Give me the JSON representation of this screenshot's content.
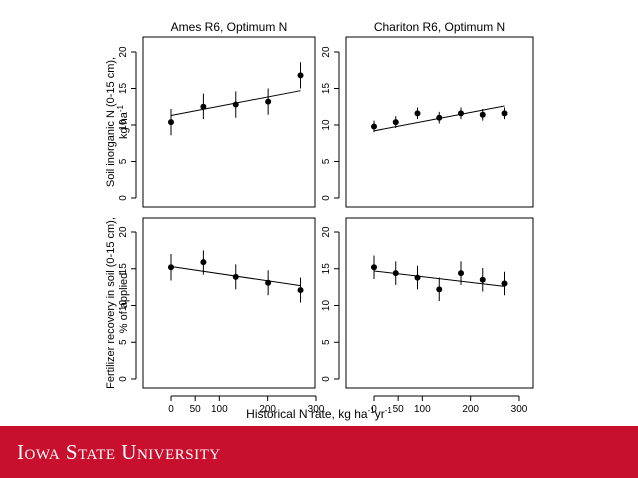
{
  "chart_data": [
    {
      "type": "scatter",
      "title": "Ames R6, Optimum N",
      "ylabel": "Soil inorganic N (0-15 cm),",
      "ylabel2": "kg ha",
      "ylabel2_sup": "-1",
      "xlabel": "",
      "xlim": [
        0,
        300
      ],
      "ylim": [
        0,
        20
      ],
      "x_ticks": [
        0,
        50,
        100,
        200,
        300
      ],
      "y_ticks": [
        0,
        5,
        10,
        15,
        20
      ],
      "points": [
        {
          "x": 0,
          "y": 10.4,
          "lo": 8.6,
          "hi": 12.2
        },
        {
          "x": 67,
          "y": 12.5,
          "lo": 10.8,
          "hi": 14.3
        },
        {
          "x": 134,
          "y": 12.8,
          "lo": 11.0,
          "hi": 14.6
        },
        {
          "x": 201,
          "y": 13.2,
          "lo": 11.4,
          "hi": 15.0
        },
        {
          "x": 268,
          "y": 16.8,
          "lo": 15.0,
          "hi": 18.6
        }
      ],
      "fit": {
        "x": [
          0,
          268
        ],
        "y": [
          11.3,
          14.7
        ]
      }
    },
    {
      "type": "scatter",
      "title": "Chariton R6, Optimum N",
      "xlim": [
        0,
        300
      ],
      "ylim": [
        0,
        20
      ],
      "x_ticks": [
        0,
        50,
        100,
        200,
        300
      ],
      "y_ticks": [
        0,
        5,
        10,
        15,
        20
      ],
      "points": [
        {
          "x": 0,
          "y": 9.8,
          "lo": 9.0,
          "hi": 10.6
        },
        {
          "x": 45,
          "y": 10.4,
          "lo": 9.6,
          "hi": 11.2
        },
        {
          "x": 90,
          "y": 11.6,
          "lo": 10.8,
          "hi": 12.4
        },
        {
          "x": 135,
          "y": 11.0,
          "lo": 10.2,
          "hi": 11.8
        },
        {
          "x": 180,
          "y": 11.6,
          "lo": 10.8,
          "hi": 12.4
        },
        {
          "x": 225,
          "y": 11.4,
          "lo": 10.6,
          "hi": 12.2
        },
        {
          "x": 270,
          "y": 11.6,
          "lo": 10.8,
          "hi": 12.4
        }
      ],
      "fit": {
        "x": [
          0,
          270
        ],
        "y": [
          9.2,
          12.6
        ]
      }
    },
    {
      "type": "scatter",
      "title": "",
      "ylabel": "Fertilizer recovery in soil (0-15 cm),",
      "ylabel2": "% of applied",
      "xlim": [
        0,
        300
      ],
      "ylim": [
        0,
        20
      ],
      "x_ticks": [
        0,
        50,
        100,
        200,
        300
      ],
      "y_ticks": [
        0,
        5,
        10,
        15,
        20
      ],
      "points": [
        {
          "x": 0,
          "y": 15.2,
          "lo": 13.4,
          "hi": 17.0
        },
        {
          "x": 67,
          "y": 15.9,
          "lo": 14.2,
          "hi": 17.5
        },
        {
          "x": 134,
          "y": 13.9,
          "lo": 12.2,
          "hi": 15.6
        },
        {
          "x": 201,
          "y": 13.1,
          "lo": 11.4,
          "hi": 14.8
        },
        {
          "x": 268,
          "y": 12.1,
          "lo": 10.4,
          "hi": 13.8
        }
      ],
      "fit": {
        "x": [
          0,
          268
        ],
        "y": [
          15.3,
          12.7
        ]
      }
    },
    {
      "type": "scatter",
      "title": "",
      "xlim": [
        0,
        300
      ],
      "ylim": [
        0,
        20
      ],
      "x_ticks": [
        0,
        50,
        100,
        200,
        300
      ],
      "y_ticks": [
        0,
        5,
        10,
        15,
        20
      ],
      "points": [
        {
          "x": 0,
          "y": 15.2,
          "lo": 13.6,
          "hi": 16.8
        },
        {
          "x": 45,
          "y": 14.4,
          "lo": 12.8,
          "hi": 16.0
        },
        {
          "x": 90,
          "y": 13.8,
          "lo": 12.2,
          "hi": 15.4
        },
        {
          "x": 135,
          "y": 12.2,
          "lo": 10.6,
          "hi": 13.8
        },
        {
          "x": 180,
          "y": 14.4,
          "lo": 12.8,
          "hi": 16.0
        },
        {
          "x": 225,
          "y": 13.5,
          "lo": 11.9,
          "hi": 15.1
        },
        {
          "x": 270,
          "y": 13.0,
          "lo": 11.4,
          "hi": 14.6
        }
      ],
      "fit": {
        "x": [
          0,
          270
        ],
        "y": [
          14.7,
          12.6
        ]
      }
    }
  ],
  "shared_xlabel": {
    "main": "Historical N rate, kg ha",
    "sup1": "-1",
    "mid": "yr",
    "sup2": "-1"
  },
  "footer": {
    "logo_text": "Iowa State University",
    "bar_color": "#c8102e"
  }
}
